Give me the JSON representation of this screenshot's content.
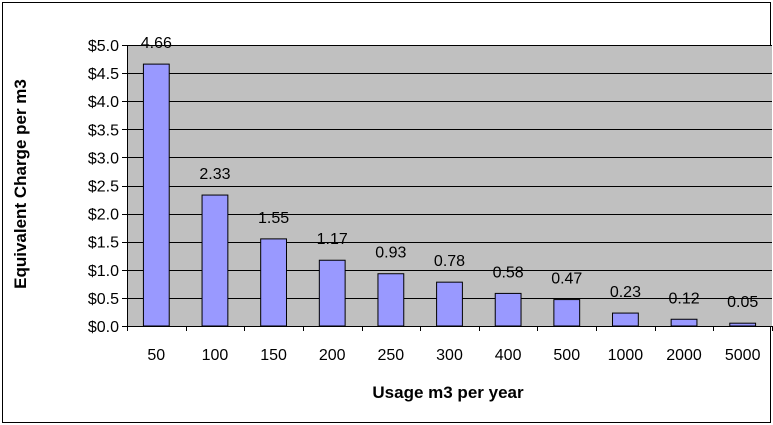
{
  "chart_data": {
    "type": "bar",
    "categories": [
      "50",
      "100",
      "150",
      "200",
      "250",
      "300",
      "400",
      "500",
      "1000",
      "2000",
      "5000"
    ],
    "values": [
      4.66,
      2.33,
      1.55,
      1.17,
      0.93,
      0.78,
      0.58,
      0.47,
      0.23,
      0.12,
      0.05
    ],
    "data_labels": [
      "4.66",
      "2.33",
      "1.55",
      "1.17",
      "0.93",
      "0.78",
      "0.58",
      "0.47",
      "0.23",
      "0.12",
      "0.05"
    ],
    "xlabel": "Usage m3 per year",
    "ylabel": "Equivalent Charge per m3",
    "ylim": [
      0,
      5
    ],
    "yticks": [
      0,
      0.5,
      1,
      1.5,
      2,
      2.5,
      3,
      3.5,
      4,
      4.5,
      5
    ],
    "ytick_labels": [
      "$0.0",
      "$0.5",
      "$1.0",
      "$1.5",
      "$2.0",
      "$2.5",
      "$3.0",
      "$3.5",
      "$4.0",
      "$4.5",
      "$5.0"
    ],
    "grid": true,
    "legend": "none",
    "colors": {
      "plot_background": "#c0c0c0",
      "bar_fill": "#9999ff",
      "bar_stroke": "#000000",
      "gridline": "#000000"
    }
  }
}
